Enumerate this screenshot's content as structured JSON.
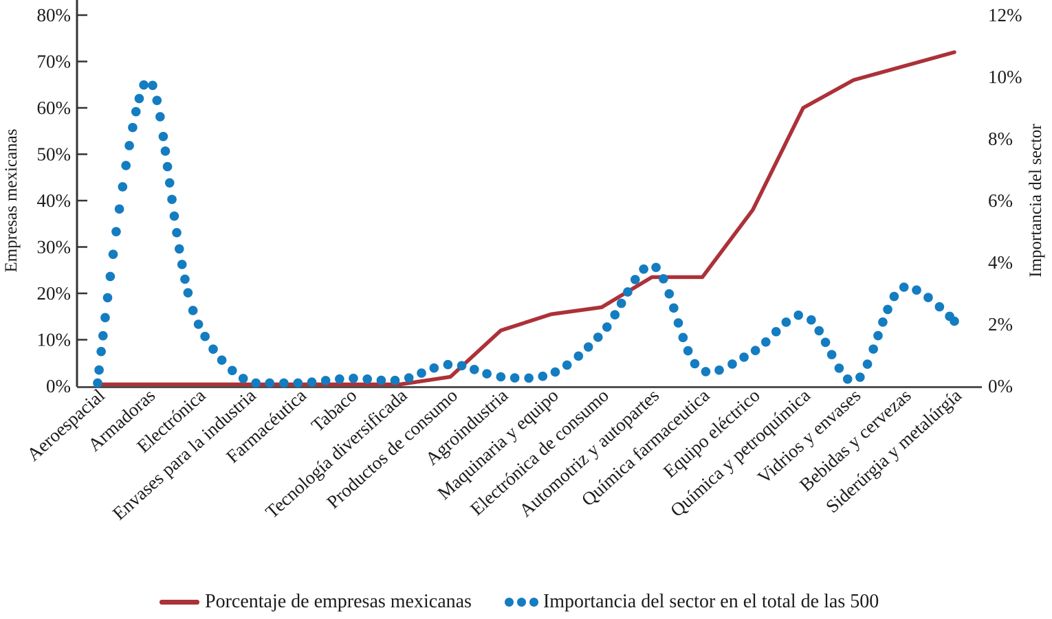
{
  "figure": {
    "background": "#ffffff",
    "text_color": "#1c1c1c",
    "axis_color": "#333333",
    "baseline_color": "#4f4f4f"
  },
  "chart_data": {
    "type": "line",
    "categories": [
      "Aeroespacial",
      "Armadoras",
      "Electrónica",
      "Envases para la industria",
      "Farmacéutica",
      "Tabaco",
      "Tecnología diversificada",
      "Productos de consumo",
      "Agroindustria",
      "Maquinaria y equipo",
      "Electrónica de consumo",
      "Automotriz y autopartes",
      "Química farmaceutica",
      "Equipo eléctrico",
      "Química y petroquímica",
      "Vidrios y envases",
      "Bebidas y cervezas",
      "Siderúrgia y metalúrgía"
    ],
    "series": [
      {
        "name": "Porcentaje de empresas mexicanas",
        "axis": "left",
        "style": "solid",
        "color": "#AC3138",
        "values": [
          0,
          0,
          0,
          0,
          0,
          0,
          0,
          2,
          12,
          15.5,
          17,
          23.5,
          23.5,
          38,
          60,
          66,
          69,
          72
        ]
      },
      {
        "name": "Importancia del sector en el total de las 500",
        "axis": "right",
        "style": "dotted",
        "color": "#147CC0",
        "values": [
          0.1,
          9.9,
          2,
          0.15,
          0.05,
          0.25,
          0.2,
          0.7,
          0.3,
          0.4,
          1.7,
          3.9,
          0.5,
          1.1,
          2.3,
          0.15,
          3.2,
          2.1
        ]
      }
    ],
    "left_axis": {
      "label": "Empresas mexicanas",
      "min": 0,
      "max": 80,
      "step": 10,
      "tick_labels": [
        "80%",
        "70%",
        "60%",
        "50%",
        "40%",
        "30%",
        "20%",
        "10%",
        "0%"
      ]
    },
    "right_axis": {
      "label": "Importancia del sector",
      "min": 0,
      "max": 12,
      "step": 2,
      "tick_labels": [
        "12%",
        "10%",
        "8%",
        "6%",
        "4%",
        "2%",
        "0%"
      ]
    },
    "legend_position": "bottom",
    "grid": false
  }
}
